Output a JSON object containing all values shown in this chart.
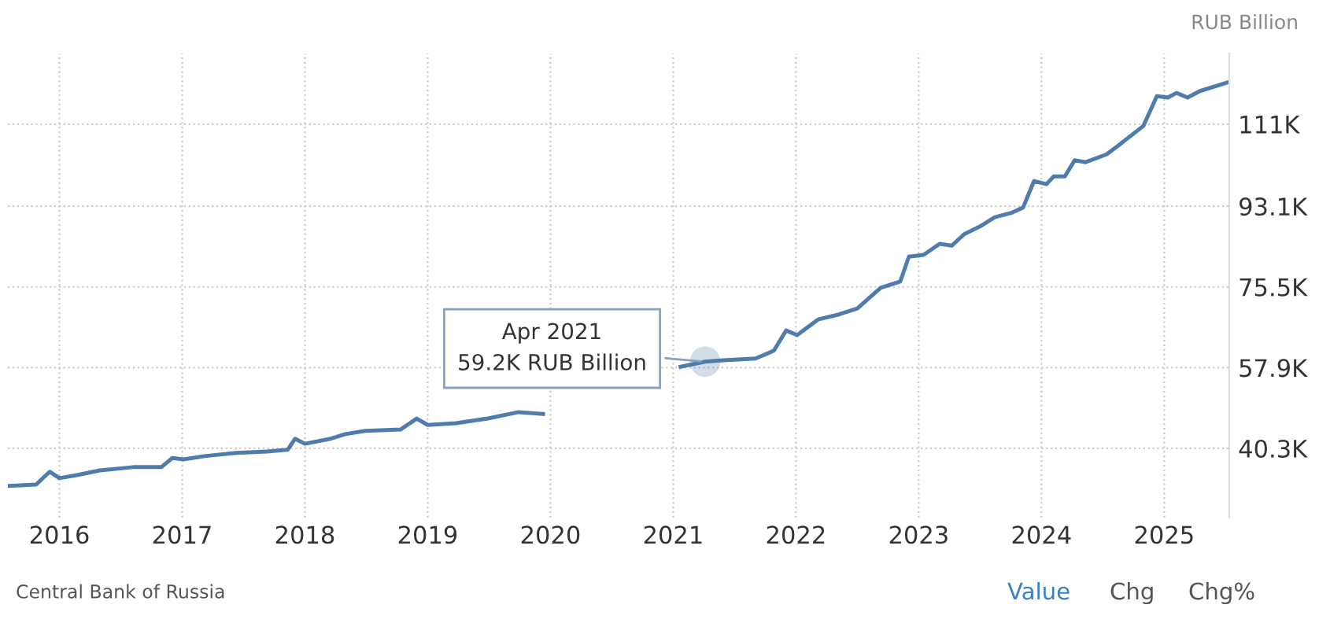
{
  "chart_data": {
    "type": "line",
    "ylabel": "RUB Billion",
    "x": [
      2015.58,
      2015.81,
      2015.92,
      2016.0,
      2016.15,
      2016.33,
      2016.6,
      2016.83,
      2016.92,
      2017.01,
      2017.18,
      2017.44,
      2017.69,
      2017.86,
      2017.92,
      2018.0,
      2018.21,
      2018.33,
      2018.49,
      2018.78,
      2018.91,
      2019.0,
      2019.23,
      2019.49,
      2019.74,
      2019.94,
      2020.5,
      2021.06,
      2021.26,
      2021.41,
      2021.67,
      2021.76,
      2021.82,
      2021.92,
      2022.01,
      2022.18,
      2022.35,
      2022.5,
      2022.69,
      2022.85,
      2022.92,
      2023.04,
      2023.17,
      2023.27,
      2023.37,
      2023.5,
      2023.62,
      2023.76,
      2023.85,
      2023.94,
      2024.04,
      2024.1,
      2024.19,
      2024.27,
      2024.36,
      2024.53,
      2024.62,
      2024.83,
      2024.94,
      2025.03,
      2025.1,
      2025.19,
      2025.29,
      2025.53
    ],
    "series": [
      {
        "color": "#4f7cac",
        "values": [
          32.1,
          32.4,
          35.2,
          33.8,
          34.5,
          35.5,
          36.2,
          36.2,
          38.2,
          37.9,
          38.6,
          39.3,
          39.6,
          40.0,
          42.4,
          41.3,
          42.4,
          43.4,
          44.1,
          44.4,
          46.8,
          45.4,
          45.8,
          46.8,
          48.2,
          47.8,
          null,
          58.1,
          59.2,
          59.5,
          59.9,
          60.9,
          61.6,
          66.0,
          65.0,
          68.4,
          69.5,
          70.8,
          75.3,
          76.7,
          82.1,
          82.5,
          84.9,
          84.5,
          87.0,
          88.7,
          90.7,
          91.7,
          92.8,
          98.6,
          97.9,
          99.6,
          99.6,
          103.1,
          102.7,
          104.4,
          106.2,
          110.6,
          117.1,
          116.8,
          117.8,
          116.8,
          118.2,
          120.2
        ]
      }
    ],
    "xlim": [
      2015.58,
      2025.53
    ],
    "ylim": [
      25.2,
      126.4
    ],
    "xticks": [
      2016,
      2017,
      2018,
      2019,
      2020,
      2021,
      2022,
      2023,
      2024,
      2025
    ],
    "yticks": [
      {
        "value": 40.3,
        "label": "40.3K"
      },
      {
        "value": 57.9,
        "label": "57.9K"
      },
      {
        "value": 75.5,
        "label": "75.5K"
      },
      {
        "value": 93.1,
        "label": "93.1K"
      },
      {
        "value": 111,
        "label": "111K"
      }
    ],
    "grid": true,
    "legend": false,
    "marker": "none",
    "line_style": "solid",
    "annotations": [
      {
        "text": "Apr 2021\n59.2K RUB Billion",
        "x": 2021.26,
        "y": 59.2
      },
      "Central Bank of Russia",
      "Value",
      "Chg",
      "Chg%"
    ]
  }
}
